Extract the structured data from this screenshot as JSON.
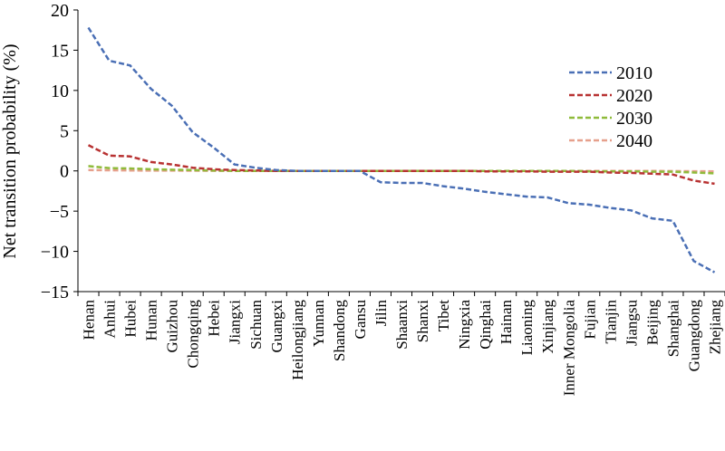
{
  "chart_data": {
    "type": "line",
    "title": "",
    "xlabel": "",
    "ylabel": "Net transition probability (%)",
    "ylim": [
      -15,
      20
    ],
    "yticks": [
      20,
      15,
      10,
      5,
      0,
      -5,
      -10,
      -15
    ],
    "grid": false,
    "legend_position": "right",
    "categories": [
      "Henan",
      "Anhui",
      "Hubei",
      "Hunan",
      "Guizhou",
      "Chongqing",
      "Hebei",
      "Jiangxi",
      "Sichuan",
      "Guangxi",
      "Heilongjiang",
      "Yunnan",
      "Shandong",
      "Gansu",
      "Jilin",
      "Shaanxi",
      "Shanxi",
      "Tibet",
      "Ningxia",
      "Qinghai",
      "Hainan",
      "Liaoning",
      "Xinjiang",
      "Inner Mongolia",
      "Fujian",
      "Tianjin",
      "Jiangsu",
      "Beijing",
      "Shanghai",
      "Guangdong",
      "Zhejiang"
    ],
    "series": [
      {
        "name": "2010",
        "color": "#4a6fb5",
        "values": [
          17.8,
          13.7,
          13.1,
          10.2,
          8.1,
          4.8,
          2.9,
          0.8,
          0.4,
          0.1,
          0.0,
          0.0,
          0.0,
          0.0,
          -1.4,
          -1.5,
          -1.5,
          -1.9,
          -2.2,
          -2.6,
          -2.9,
          -3.2,
          -3.3,
          -4.0,
          -4.2,
          -4.6,
          -4.9,
          -5.9,
          -6.2,
          -11.2,
          -12.6
        ]
      },
      {
        "name": "2020",
        "color": "#b83232",
        "values": [
          3.2,
          1.9,
          1.8,
          1.1,
          0.8,
          0.4,
          0.2,
          0.1,
          0.05,
          0.0,
          0.0,
          0.0,
          0.0,
          0.0,
          0.0,
          0.0,
          0.0,
          0.0,
          0.0,
          -0.05,
          -0.05,
          -0.05,
          -0.1,
          -0.1,
          -0.1,
          -0.2,
          -0.25,
          -0.35,
          -0.45,
          -1.2,
          -1.6
        ]
      },
      {
        "name": "2030",
        "color": "#8fbb3b",
        "values": [
          0.6,
          0.35,
          0.3,
          0.2,
          0.15,
          0.1,
          0.05,
          0.0,
          0.0,
          0.0,
          0.0,
          0.0,
          0.0,
          0.0,
          0.0,
          0.0,
          0.0,
          0.0,
          0.0,
          0.0,
          0.0,
          0.0,
          0.0,
          0.0,
          -0.05,
          -0.05,
          -0.05,
          -0.1,
          -0.1,
          -0.2,
          -0.3
        ]
      },
      {
        "name": "2040",
        "color": "#e6a08c",
        "values": [
          0.1,
          0.08,
          0.06,
          0.04,
          0.03,
          0.02,
          0.01,
          0.0,
          0.0,
          0.0,
          0.0,
          0.0,
          0.0,
          0.0,
          0.0,
          0.0,
          0.0,
          0.0,
          0.0,
          0.0,
          0.0,
          0.0,
          0.0,
          0.0,
          0.0,
          0.0,
          0.0,
          0.0,
          -0.02,
          -0.04,
          -0.06
        ]
      }
    ]
  }
}
